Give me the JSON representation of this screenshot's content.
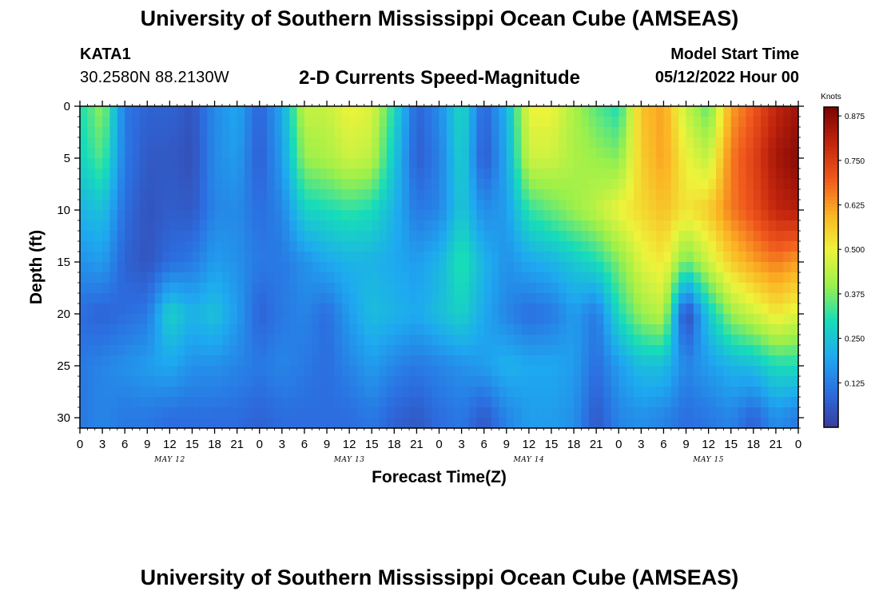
{
  "header": {
    "title": "University of Southern Mississippi Ocean Cube (AMSEAS)",
    "station": "KATA1",
    "coords": "30.2580N  88.2130W",
    "subtitle": "2-D Currents Speed-Magnitude",
    "start_label": "Model Start Time",
    "start_value": "05/12/2022 Hour 00"
  },
  "footer": {
    "title": "University of Southern Mississippi Ocean Cube (AMSEAS)"
  },
  "chart_data": {
    "type": "heatmap",
    "title": "2-D Currents Speed-Magnitude",
    "xlabel": "Forecast Time(Z)",
    "ylabel": "Depth (ft)",
    "xlim": [
      0,
      96
    ],
    "ylim": [
      31,
      0
    ],
    "x_ticks": [
      0,
      3,
      6,
      9,
      12,
      15,
      18,
      21,
      24,
      27,
      30,
      33,
      36,
      39,
      42,
      45,
      48,
      51,
      54,
      57,
      60,
      63,
      66,
      69,
      72,
      75,
      78,
      81,
      84,
      87,
      90,
      93,
      96
    ],
    "x_tick_labels": [
      "0",
      "3",
      "6",
      "9",
      "12",
      "15",
      "18",
      "21",
      "0",
      "3",
      "6",
      "9",
      "12",
      "15",
      "18",
      "21",
      "0",
      "3",
      "6",
      "9",
      "12",
      "15",
      "18",
      "21",
      "0",
      "3",
      "6",
      "9",
      "12",
      "15",
      "18",
      "21",
      "0"
    ],
    "day_labels": [
      {
        "x": 12,
        "label": "MAY 12"
      },
      {
        "x": 36,
        "label": "MAY 13"
      },
      {
        "x": 60,
        "label": "MAY 14"
      },
      {
        "x": 84,
        "label": "MAY 15"
      }
    ],
    "y_ticks": [
      0,
      5,
      10,
      15,
      20,
      25,
      30
    ],
    "y_tick_labels": [
      "0",
      "5",
      "10",
      "15",
      "20",
      "25",
      "30"
    ],
    "colorbar": {
      "unit": "Knots",
      "range": [
        0,
        0.9
      ],
      "ticks": [
        0.125,
        0.25,
        0.375,
        0.5,
        0.625,
        0.75,
        0.875
      ],
      "tick_labels": [
        "0.125",
        "0.250",
        "0.375",
        "0.500",
        "0.625",
        "0.750",
        "0.875"
      ],
      "colormap": [
        "#3a3c9c",
        "#2c6de0",
        "#1ea9f0",
        "#17dcb9",
        "#9bf04b",
        "#eef33a",
        "#fbb324",
        "#f0571d",
        "#c2250d",
        "#7a0404"
      ]
    },
    "surface_speed": [
      0.3,
      0.4,
      0.12,
      0.08,
      0.08,
      0.05,
      0.15,
      0.2,
      0.08,
      0.2,
      0.45,
      0.45,
      0.5,
      0.48,
      0.3,
      0.08,
      0.15,
      0.3,
      0.08,
      0.22,
      0.5,
      0.5,
      0.42,
      0.35,
      0.3,
      0.58,
      0.62,
      0.45,
      0.35,
      0.62,
      0.7,
      0.8,
      0.85
    ],
    "depth_ft": [
      0,
      5,
      10,
      15,
      20,
      25,
      30
    ],
    "speed_grid": [
      [
        0.3,
        0.4,
        0.12,
        0.08,
        0.08,
        0.05,
        0.15,
        0.2,
        0.08,
        0.2,
        0.45,
        0.45,
        0.5,
        0.48,
        0.3,
        0.08,
        0.15,
        0.3,
        0.08,
        0.22,
        0.5,
        0.5,
        0.42,
        0.35,
        0.3,
        0.58,
        0.62,
        0.45,
        0.35,
        0.62,
        0.7,
        0.8,
        0.85
      ],
      [
        0.28,
        0.35,
        0.12,
        0.06,
        0.06,
        0.04,
        0.15,
        0.18,
        0.07,
        0.18,
        0.4,
        0.42,
        0.46,
        0.44,
        0.26,
        0.07,
        0.13,
        0.28,
        0.06,
        0.2,
        0.46,
        0.46,
        0.42,
        0.4,
        0.38,
        0.56,
        0.62,
        0.5,
        0.44,
        0.66,
        0.74,
        0.84,
        0.88
      ],
      [
        0.22,
        0.25,
        0.1,
        0.05,
        0.07,
        0.06,
        0.14,
        0.15,
        0.1,
        0.14,
        0.28,
        0.3,
        0.32,
        0.3,
        0.22,
        0.12,
        0.14,
        0.26,
        0.15,
        0.18,
        0.32,
        0.36,
        0.4,
        0.44,
        0.5,
        0.54,
        0.58,
        0.52,
        0.56,
        0.66,
        0.72,
        0.8,
        0.82
      ],
      [
        0.16,
        0.18,
        0.08,
        0.05,
        0.1,
        0.12,
        0.18,
        0.16,
        0.12,
        0.12,
        0.16,
        0.2,
        0.22,
        0.22,
        0.2,
        0.18,
        0.22,
        0.32,
        0.22,
        0.16,
        0.2,
        0.22,
        0.26,
        0.3,
        0.38,
        0.48,
        0.52,
        0.36,
        0.46,
        0.56,
        0.62,
        0.66,
        0.62
      ],
      [
        0.1,
        0.08,
        0.1,
        0.12,
        0.28,
        0.22,
        0.25,
        0.18,
        0.08,
        0.12,
        0.14,
        0.1,
        0.18,
        0.24,
        0.22,
        0.2,
        0.24,
        0.28,
        0.2,
        0.14,
        0.1,
        0.12,
        0.18,
        0.12,
        0.3,
        0.4,
        0.44,
        0.02,
        0.26,
        0.4,
        0.46,
        0.52,
        0.48
      ],
      [
        0.12,
        0.14,
        0.16,
        0.18,
        0.2,
        0.16,
        0.16,
        0.14,
        0.12,
        0.14,
        0.12,
        0.1,
        0.14,
        0.18,
        0.14,
        0.12,
        0.14,
        0.16,
        0.18,
        0.22,
        0.2,
        0.2,
        0.18,
        0.1,
        0.18,
        0.24,
        0.24,
        0.14,
        0.18,
        0.22,
        0.24,
        0.3,
        0.3
      ],
      [
        0.12,
        0.14,
        0.12,
        0.12,
        0.1,
        0.1,
        0.1,
        0.1,
        0.08,
        0.1,
        0.1,
        0.1,
        0.1,
        0.12,
        0.08,
        0.06,
        0.1,
        0.12,
        0.06,
        0.14,
        0.18,
        0.18,
        0.16,
        0.06,
        0.14,
        0.16,
        0.14,
        0.1,
        0.12,
        0.14,
        0.08,
        0.16,
        0.12
      ]
    ]
  }
}
